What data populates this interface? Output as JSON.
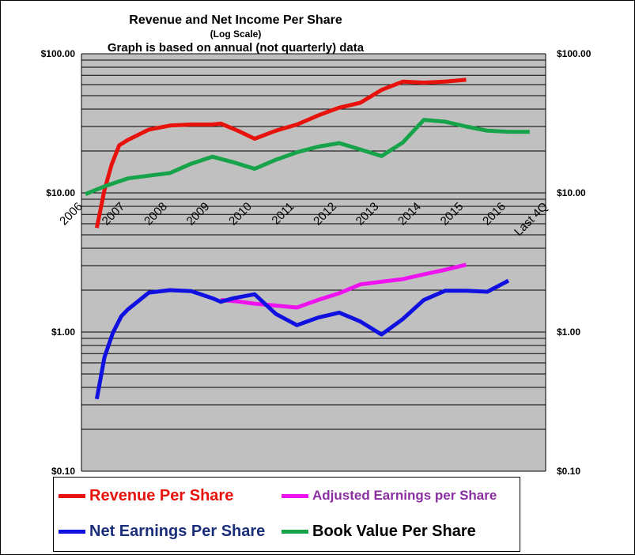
{
  "chart_data": {
    "type": "line",
    "title": "Revenue  and  Net Income  Per Share",
    "subtitle": "(Log  Scale)",
    "note": "Graph is based on annual  (not quarterly) data",
    "y_scale": "log",
    "ylim": [
      0.1,
      100
    ],
    "y_tick_labels": [
      "$100.00",
      "$10.00",
      "$1.00",
      "$0.10"
    ],
    "categories": [
      "2006",
      "2007",
      "2008",
      "2009",
      "2010",
      "2011",
      "2012",
      "2013",
      "2014",
      "2015",
      "2016",
      "Last 4Q"
    ],
    "grid": true,
    "legend_position": "bottom",
    "series": [
      {
        "name": "Revenue Per Share",
        "color": "#e8120c",
        "text_color": "#e8120c",
        "points": [
          [
            0.27,
            5.6
          ],
          [
            0.45,
            10.5
          ],
          [
            0.62,
            16
          ],
          [
            0.8,
            22
          ],
          [
            1.0,
            24
          ],
          [
            1.5,
            28.5
          ],
          [
            2.0,
            30.5
          ],
          [
            2.5,
            31
          ],
          [
            3.0,
            31
          ],
          [
            3.2,
            31.5
          ],
          [
            3.6,
            28
          ],
          [
            4.0,
            24.5
          ],
          [
            4.5,
            28
          ],
          [
            5.0,
            31
          ],
          [
            5.5,
            36
          ],
          [
            5.7,
            38
          ],
          [
            6.0,
            41
          ],
          [
            6.5,
            44.5
          ],
          [
            7.0,
            55
          ],
          [
            7.5,
            63
          ],
          [
            8.0,
            62
          ],
          [
            8.5,
            63
          ],
          [
            9.0,
            65
          ]
        ]
      },
      {
        "name": "Adjusted Earnings per Share",
        "color": "#ee12ee",
        "text_color": "#8b2ea1",
        "points": [
          [
            3.2,
            1.7
          ],
          [
            3.6,
            1.66
          ],
          [
            4.0,
            1.6
          ],
          [
            4.5,
            1.55
          ],
          [
            5.0,
            1.5
          ],
          [
            5.5,
            1.7
          ],
          [
            6.0,
            1.9
          ],
          [
            6.5,
            2.2
          ],
          [
            7.0,
            2.3
          ],
          [
            7.5,
            2.4
          ],
          [
            8.0,
            2.6
          ],
          [
            8.5,
            2.8
          ],
          [
            9.0,
            3.05
          ]
        ]
      },
      {
        "name": "Net Earnings Per Share",
        "color": "#1010e0",
        "text_color": "#1a2e7a",
        "points": [
          [
            0.27,
            0.33
          ],
          [
            0.45,
            0.66
          ],
          [
            0.65,
            0.99
          ],
          [
            0.85,
            1.3
          ],
          [
            1.0,
            1.45
          ],
          [
            1.5,
            1.92
          ],
          [
            2.0,
            2.0
          ],
          [
            2.5,
            1.97
          ],
          [
            3.0,
            1.75
          ],
          [
            3.2,
            1.65
          ],
          [
            3.5,
            1.75
          ],
          [
            4.0,
            1.87
          ],
          [
            4.5,
            1.35
          ],
          [
            5.0,
            1.12
          ],
          [
            5.5,
            1.27
          ],
          [
            6.0,
            1.38
          ],
          [
            6.5,
            1.19
          ],
          [
            7.0,
            0.96
          ],
          [
            7.5,
            1.24
          ],
          [
            8.0,
            1.7
          ],
          [
            8.5,
            1.98
          ],
          [
            9.0,
            1.98
          ],
          [
            9.5,
            1.95
          ],
          [
            10.0,
            2.34
          ]
        ]
      },
      {
        "name": "Book Value Per Share",
        "color": "#16a34a",
        "text_color": "#000000",
        "points": [
          [
            0.0,
            9.8
          ],
          [
            0.5,
            11.3
          ],
          [
            1.0,
            12.7
          ],
          [
            1.5,
            13.3
          ],
          [
            2.0,
            13.9
          ],
          [
            2.5,
            16.2
          ],
          [
            3.0,
            18.2
          ],
          [
            3.5,
            16.6
          ],
          [
            4.0,
            14.9
          ],
          [
            4.5,
            17.3
          ],
          [
            5.0,
            19.6
          ],
          [
            5.5,
            21.5
          ],
          [
            6.0,
            22.8
          ],
          [
            6.5,
            20.5
          ],
          [
            7.0,
            18.4
          ],
          [
            7.5,
            23.0
          ],
          [
            8.0,
            33.5
          ],
          [
            8.5,
            32.5
          ],
          [
            9.0,
            30.0
          ],
          [
            9.5,
            28.0
          ],
          [
            10.0,
            27.5
          ],
          [
            10.5,
            27.5
          ]
        ]
      }
    ]
  }
}
